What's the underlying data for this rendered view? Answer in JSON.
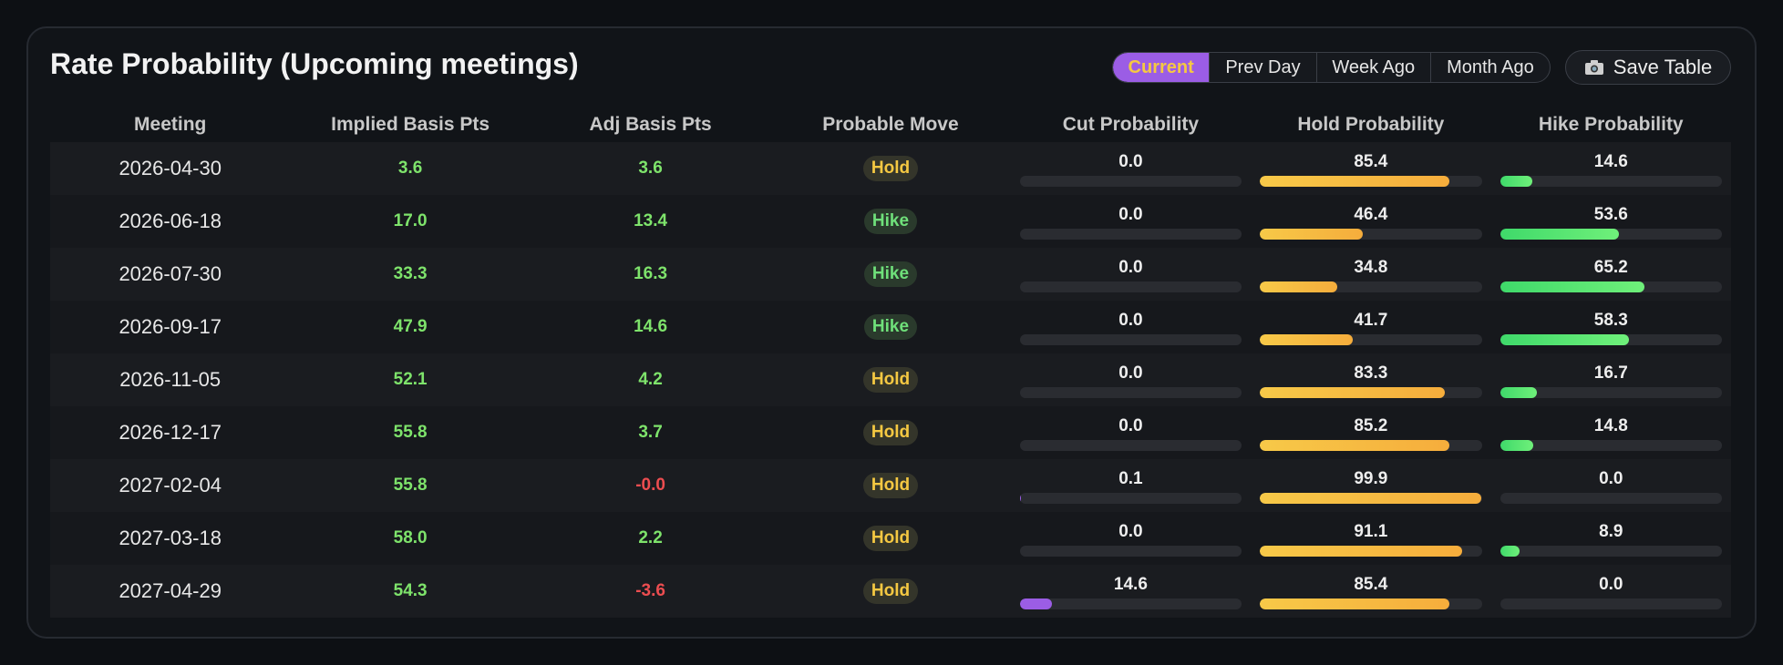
{
  "header": {
    "title": "Rate Probability (Upcoming meetings)",
    "tabs": [
      "Current",
      "Prev Day",
      "Week Ago",
      "Month Ago"
    ],
    "active_tab": 0,
    "save_button": "Save Table"
  },
  "table": {
    "columns": [
      "Meeting",
      "Implied Basis Pts",
      "Adj Basis Pts",
      "Probable Move",
      "Cut Probability",
      "Hold Probability",
      "Hike Probability"
    ],
    "rows": [
      [
        "2026-04-30",
        "3.6",
        "3.6",
        "Hold",
        "0.0",
        "85.4",
        "14.6"
      ],
      [
        "2026-06-18",
        "17.0",
        "13.4",
        "Hike",
        "0.0",
        "46.4",
        "53.6"
      ],
      [
        "2026-07-30",
        "33.3",
        "16.3",
        "Hike",
        "0.0",
        "34.8",
        "65.2"
      ],
      [
        "2026-09-17",
        "47.9",
        "14.6",
        "Hike",
        "0.0",
        "41.7",
        "58.3"
      ],
      [
        "2026-11-05",
        "52.1",
        "4.2",
        "Hold",
        "0.0",
        "83.3",
        "16.7"
      ],
      [
        "2026-12-17",
        "55.8",
        "3.7",
        "Hold",
        "0.0",
        "85.2",
        "14.8"
      ],
      [
        "2027-02-04",
        "55.8",
        "-0.0",
        "Hold",
        "0.1",
        "99.9",
        "0.0"
      ],
      [
        "2027-03-18",
        "58.0",
        "2.2",
        "Hold",
        "0.0",
        "91.1",
        "8.9"
      ],
      [
        "2027-04-29",
        "54.3",
        "-3.6",
        "Hold",
        "14.6",
        "85.4",
        "0.0"
      ]
    ]
  }
}
